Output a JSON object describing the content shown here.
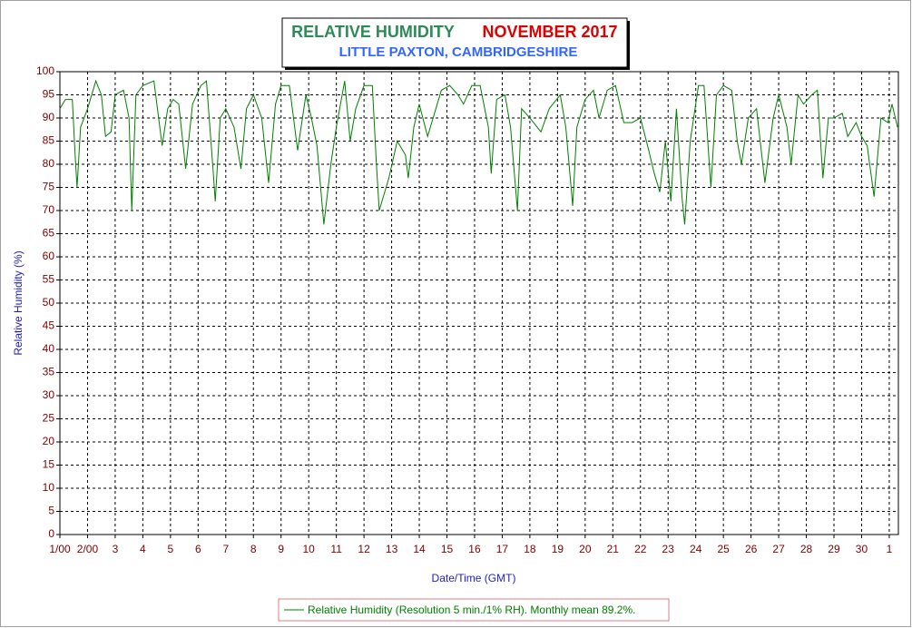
{
  "chart_data": {
    "type": "line",
    "title": "RELATIVE HUMIDITY",
    "title_month": "NOVEMBER 2017",
    "subtitle": "LITTLE PAXTON, CAMBRIDGESHIRE",
    "x_label": "Date/Time (GMT)",
    "y_label": "Relative Humidity (%)",
    "xlim": [
      1,
      31.33
    ],
    "ylim": [
      0,
      100
    ],
    "xticks": [
      {
        "value": 1,
        "label": "1/00"
      },
      {
        "value": 2,
        "label": "2/00"
      },
      3,
      4,
      5,
      6,
      7,
      8,
      9,
      10,
      11,
      12,
      13,
      14,
      15,
      16,
      17,
      18,
      19,
      20,
      21,
      22,
      23,
      24,
      25,
      26,
      27,
      28,
      29,
      30,
      {
        "value": 31,
        "label": "1"
      }
    ],
    "yticks": [
      0,
      5,
      10,
      15,
      20,
      25,
      30,
      35,
      40,
      45,
      50,
      55,
      60,
      65,
      70,
      75,
      80,
      85,
      90,
      95,
      100
    ],
    "grid": true,
    "x": [
      1.0,
      1.2,
      1.45,
      1.55,
      1.62,
      1.75,
      2.0,
      2.3,
      2.5,
      2.65,
      2.85,
      3.0,
      3.3,
      3.5,
      3.6,
      3.75,
      4.0,
      4.4,
      4.7,
      4.9,
      5.1,
      5.3,
      5.55,
      5.8,
      6.1,
      6.3,
      6.55,
      6.62,
      6.8,
      7.0,
      7.3,
      7.55,
      7.75,
      8.0,
      8.3,
      8.55,
      8.8,
      9.0,
      9.3,
      9.6,
      9.9,
      10.1,
      10.3,
      10.55,
      10.8,
      11.0,
      11.3,
      11.5,
      11.7,
      12.0,
      12.3,
      12.45,
      12.55,
      12.9,
      13.2,
      13.5,
      13.6,
      13.8,
      14.0,
      14.3,
      14.6,
      14.8,
      15.1,
      15.4,
      15.6,
      15.9,
      16.2,
      16.5,
      16.6,
      16.8,
      17.1,
      17.3,
      17.55,
      17.7,
      18.0,
      18.4,
      18.7,
      19.1,
      19.3,
      19.55,
      19.7,
      20.0,
      20.3,
      20.5,
      20.8,
      21.1,
      21.4,
      21.7,
      22.0,
      22.3,
      22.5,
      22.7,
      22.9,
      23.1,
      23.3,
      23.5,
      23.6,
      23.8,
      24.1,
      24.3,
      24.55,
      24.75,
      25.0,
      25.3,
      25.5,
      25.65,
      25.9,
      26.2,
      26.5,
      26.8,
      27.0,
      27.3,
      27.45,
      27.7,
      27.9,
      28.2,
      28.4,
      28.6,
      28.8,
      29.0,
      29.3,
      29.5,
      29.8,
      30.0,
      30.2,
      30.45,
      30.7,
      30.95,
      31.1,
      31.3
    ],
    "series": [
      {
        "name": "Relative Humidity (Resolution 5 min./1% RH). Monthly mean 89.2%.",
        "color": "#008000",
        "values": [
          92,
          94,
          94,
          82,
          75,
          88,
          92,
          98,
          95,
          86,
          87,
          95,
          96,
          90,
          70,
          95,
          97,
          98,
          84,
          92,
          94,
          93,
          79,
          93,
          97,
          98,
          78,
          72,
          90,
          92,
          88,
          79,
          92,
          95,
          90,
          76,
          93,
          97,
          97,
          83,
          95,
          90,
          84,
          67,
          80,
          88,
          98,
          85,
          92,
          97,
          97,
          80,
          70,
          77,
          85,
          82,
          77,
          88,
          93,
          86,
          92,
          96,
          97,
          95,
          93,
          97,
          97,
          88,
          78,
          94,
          95,
          88,
          70,
          92,
          90,
          87,
          92,
          95,
          88,
          71,
          88,
          94,
          96,
          90,
          96,
          97,
          89,
          89,
          90,
          83,
          78,
          74,
          85,
          72,
          92,
          73,
          67,
          85,
          97,
          97,
          75,
          95,
          97,
          96,
          85,
          80,
          90,
          92,
          76,
          90,
          95,
          88,
          80,
          95,
          93,
          95,
          96,
          77,
          90,
          90,
          91,
          86,
          89,
          86,
          84,
          73,
          90,
          89,
          93,
          88
        ]
      }
    ]
  }
}
